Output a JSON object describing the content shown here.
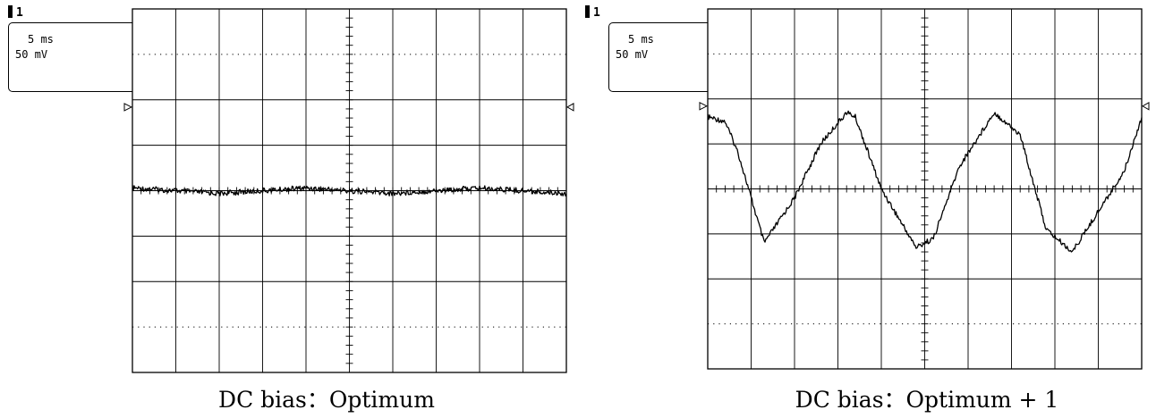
{
  "chart_data": [
    {
      "type": "line",
      "caption": "DC bias：Optimum",
      "settings": {
        "time_div": "5 ms",
        "volt_div": "50 mV",
        "channel": "1"
      },
      "x": [
        0,
        5,
        10,
        15,
        20,
        25,
        30,
        35,
        40,
        45,
        50
      ],
      "series": [
        {
          "values": [
            3,
            0,
            -3,
            0,
            3,
            0,
            -3,
            0,
            3,
            0,
            -3
          ]
        }
      ],
      "x_unit": "ms",
      "y_unit": "mV",
      "xlim": [
        0,
        50
      ],
      "ylim": [
        -200,
        200
      ],
      "grid": true,
      "background": "#ffffff",
      "trace_color": "#000000"
    },
    {
      "type": "line",
      "caption": "DC bias：Optimum + 1",
      "settings": {
        "time_div": "5 ms",
        "volt_div": "50 mV",
        "channel": "1"
      },
      "x": [
        0,
        2,
        3.5,
        6.5,
        10,
        13,
        16,
        17,
        20,
        24,
        26,
        29,
        33,
        36,
        39,
        42,
        45,
        48,
        50
      ],
      "series": [
        {
          "values": [
            80,
            75,
            40,
            -60,
            -10,
            50,
            85,
            80,
            0,
            -65,
            -55,
            25,
            85,
            60,
            -45,
            -70,
            -25,
            20,
            80
          ]
        }
      ],
      "x_unit": "ms",
      "y_unit": "mV",
      "xlim": [
        0,
        50
      ],
      "ylim": [
        -200,
        200
      ],
      "grid": true,
      "background": "#ffffff",
      "trace_color": "#000000"
    }
  ]
}
